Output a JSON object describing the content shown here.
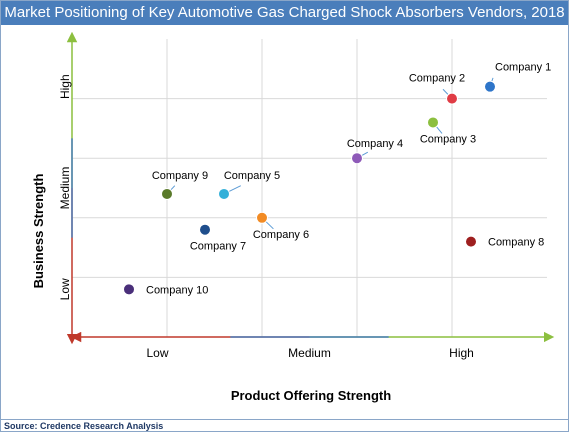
{
  "title": "Market Positioning of Key Automotive Gas Charged Shock Absorbers Vendors, 2018",
  "source": "Source: Credence Research Analysis",
  "chart_data": {
    "type": "scatter",
    "title": "Market Positioning of Key Automotive Gas Charged Shock Absorbers Vendors, 2018",
    "xlabel": "Product Offering Strength",
    "ylabel": "Business Strength",
    "xlim": [
      0,
      5
    ],
    "ylim": [
      0,
      5
    ],
    "x_ticks": [
      "Low",
      "Medium",
      "High"
    ],
    "y_ticks": [
      "Low",
      "Medium",
      "High"
    ],
    "grid": true,
    "points": [
      {
        "name": "Company 1",
        "x": 4.4,
        "y": 4.2,
        "color": "#2e75c9"
      },
      {
        "name": "Company 2",
        "x": 4.0,
        "y": 4.0,
        "color": "#e03c45"
      },
      {
        "name": "Company 3",
        "x": 3.8,
        "y": 3.6,
        "color": "#8cbf3f"
      },
      {
        "name": "Company 4",
        "x": 3.0,
        "y": 3.0,
        "color": "#8e5ab8"
      },
      {
        "name": "Company 5",
        "x": 1.6,
        "y": 2.4,
        "color": "#33b0d9"
      },
      {
        "name": "Company 6",
        "x": 2.0,
        "y": 2.0,
        "color": "#f28b24"
      },
      {
        "name": "Company 7",
        "x": 1.4,
        "y": 1.8,
        "color": "#1f4e8c"
      },
      {
        "name": "Company 8",
        "x": 4.2,
        "y": 1.6,
        "color": "#9e1f1f"
      },
      {
        "name": "Company 9",
        "x": 1.0,
        "y": 2.4,
        "color": "#5a7a2a"
      },
      {
        "name": "Company 10",
        "x": 0.6,
        "y": 0.8,
        "color": "#4a2f7a"
      }
    ]
  }
}
